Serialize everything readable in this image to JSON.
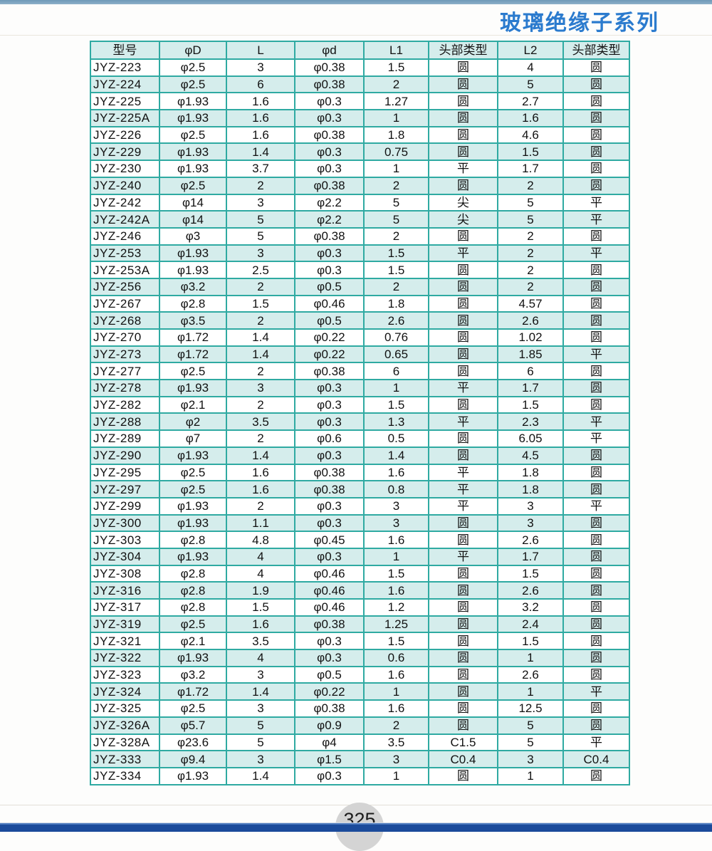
{
  "page": {
    "title": "玻璃绝缘子系列",
    "page_number": "325"
  },
  "colors": {
    "border_teal": "#2faaa2",
    "stripe_cyan": "#d5edec",
    "title_blue": "#2b7bce",
    "top_bar_blue": "#6e99b8",
    "bottom_bar_navy": "#1b4b9b",
    "page_badge_gray": "#d4d4d4"
  },
  "table": {
    "headers": [
      "型号",
      "φD",
      "L",
      "φd",
      "L1",
      "头部类型",
      "L2",
      "头部类型"
    ],
    "rows": [
      [
        "JYZ-223",
        "φ2.5",
        "3",
        "φ0.38",
        "1.5",
        "圆",
        "4",
        "圆"
      ],
      [
        "JYZ-224",
        "φ2.5",
        "6",
        "φ0.38",
        "2",
        "圆",
        "5",
        "圆"
      ],
      [
        "JYZ-225",
        "φ1.93",
        "1.6",
        "φ0.3",
        "1.27",
        "圆",
        "2.7",
        "圆"
      ],
      [
        "JYZ-225A",
        "φ1.93",
        "1.6",
        "φ0.3",
        "1",
        "圆",
        "1.6",
        "圆"
      ],
      [
        "JYZ-226",
        "φ2.5",
        "1.6",
        "φ0.38",
        "1.8",
        "圆",
        "4.6",
        "圆"
      ],
      [
        "JYZ-229",
        "φ1.93",
        "1.4",
        "φ0.3",
        "0.75",
        "圆",
        "1.5",
        "圆"
      ],
      [
        "JYZ-230",
        "φ1.93",
        "3.7",
        "φ0.3",
        "1",
        "平",
        "1.7",
        "圆"
      ],
      [
        "JYZ-240",
        "φ2.5",
        "2",
        "φ0.38",
        "2",
        "圆",
        "2",
        "圆"
      ],
      [
        "JYZ-242",
        "φ14",
        "3",
        "φ2.2",
        "5",
        "尖",
        "5",
        "平"
      ],
      [
        "JYZ-242A",
        "φ14",
        "5",
        "φ2.2",
        "5",
        "尖",
        "5",
        "平"
      ],
      [
        "JYZ-246",
        "φ3",
        "5",
        "φ0.38",
        "2",
        "圆",
        "2",
        "圆"
      ],
      [
        "JYZ-253",
        "φ1.93",
        "3",
        "φ0.3",
        "1.5",
        "平",
        "2",
        "平"
      ],
      [
        "JYZ-253A",
        "φ1.93",
        "2.5",
        "φ0.3",
        "1.5",
        "圆",
        "2",
        "圆"
      ],
      [
        "JYZ-256",
        "φ3.2",
        "2",
        "φ0.5",
        "2",
        "圆",
        "2",
        "圆"
      ],
      [
        "JYZ-267",
        "φ2.8",
        "1.5",
        "φ0.46",
        "1.8",
        "圆",
        "4.57",
        "圆"
      ],
      [
        "JYZ-268",
        "φ3.5",
        "2",
        "φ0.5",
        "2.6",
        "圆",
        "2.6",
        "圆"
      ],
      [
        "JYZ-270",
        "φ1.72",
        "1.4",
        "φ0.22",
        "0.76",
        "圆",
        "1.02",
        "圆"
      ],
      [
        "JYZ-273",
        "φ1.72",
        "1.4",
        "φ0.22",
        "0.65",
        "圆",
        "1.85",
        "平"
      ],
      [
        "JYZ-277",
        "φ2.5",
        "2",
        "φ0.38",
        "6",
        "圆",
        "6",
        "圆"
      ],
      [
        "JYZ-278",
        "φ1.93",
        "3",
        "φ0.3",
        "1",
        "平",
        "1.7",
        "圆"
      ],
      [
        "JYZ-282",
        "φ2.1",
        "2",
        "φ0.3",
        "1.5",
        "圆",
        "1.5",
        "圆"
      ],
      [
        "JYZ-288",
        "φ2",
        "3.5",
        "φ0.3",
        "1.3",
        "平",
        "2.3",
        "平"
      ],
      [
        "JYZ-289",
        "φ7",
        "2",
        "φ0.6",
        "0.5",
        "圆",
        "6.05",
        "平"
      ],
      [
        "JYZ-290",
        "φ1.93",
        "1.4",
        "φ0.3",
        "1.4",
        "圆",
        "4.5",
        "圆"
      ],
      [
        "JYZ-295",
        "φ2.5",
        "1.6",
        "φ0.38",
        "1.6",
        "平",
        "1.8",
        "圆"
      ],
      [
        "JYZ-297",
        "φ2.5",
        "1.6",
        "φ0.38",
        "0.8",
        "平",
        "1.8",
        "圆"
      ],
      [
        "JYZ-299",
        "φ1.93",
        "2",
        "φ0.3",
        "3",
        "平",
        "3",
        "平"
      ],
      [
        "JYZ-300",
        "φ1.93",
        "1.1",
        "φ0.3",
        "3",
        "圆",
        "3",
        "圆"
      ],
      [
        "JYZ-303",
        "φ2.8",
        "4.8",
        "φ0.45",
        "1.6",
        "圆",
        "2.6",
        "圆"
      ],
      [
        "JYZ-304",
        "φ1.93",
        "4",
        "φ0.3",
        "1",
        "平",
        "1.7",
        "圆"
      ],
      [
        "JYZ-308",
        "φ2.8",
        "4",
        "φ0.46",
        "1.5",
        "圆",
        "1.5",
        "圆"
      ],
      [
        "JYZ-316",
        "φ2.8",
        "1.9",
        "φ0.46",
        "1.6",
        "圆",
        "2.6",
        "圆"
      ],
      [
        "JYZ-317",
        "φ2.8",
        "1.5",
        "φ0.46",
        "1.2",
        "圆",
        "3.2",
        "圆"
      ],
      [
        "JYZ-319",
        "φ2.5",
        "1.6",
        "φ0.38",
        "1.25",
        "圆",
        "2.4",
        "圆"
      ],
      [
        "JYZ-321",
        "φ2.1",
        "3.5",
        "φ0.3",
        "1.5",
        "圆",
        "1.5",
        "圆"
      ],
      [
        "JYZ-322",
        "φ1.93",
        "4",
        "φ0.3",
        "0.6",
        "圆",
        "1",
        "圆"
      ],
      [
        "JYZ-323",
        "φ3.2",
        "3",
        "φ0.5",
        "1.6",
        "圆",
        "2.6",
        "圆"
      ],
      [
        "JYZ-324",
        "φ1.72",
        "1.4",
        "φ0.22",
        "1",
        "圆",
        "1",
        "平"
      ],
      [
        "JYZ-325",
        "φ2.5",
        "3",
        "φ0.38",
        "1.6",
        "圆",
        "12.5",
        "圆"
      ],
      [
        "JYZ-326A",
        "φ5.7",
        "5",
        "φ0.9",
        "2",
        "圆",
        "5",
        "圆"
      ],
      [
        "JYZ-328A",
        "φ23.6",
        "5",
        "φ4",
        "3.5",
        "C1.5",
        "5",
        "平"
      ],
      [
        "JYZ-333",
        "φ9.4",
        "3",
        "φ1.5",
        "3",
        "C0.4",
        "3",
        "C0.4"
      ],
      [
        "JYZ-334",
        "φ1.93",
        "1.4",
        "φ0.3",
        "1",
        "圆",
        "1",
        "圆"
      ]
    ]
  }
}
